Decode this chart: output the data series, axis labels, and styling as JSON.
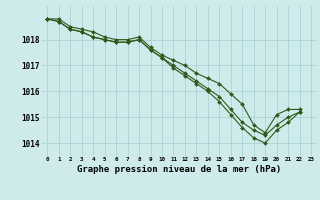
{
  "title": "Graphe pression niveau de la mer (hPa)",
  "background_color": "#ceeaea",
  "grid_color": "#aad4d4",
  "line_color": "#2d5a1b",
  "x_labels": [
    "0",
    "1",
    "2",
    "3",
    "4",
    "5",
    "6",
    "7",
    "8",
    "9",
    "10",
    "11",
    "12",
    "13",
    "14",
    "15",
    "16",
    "17",
    "18",
    "19",
    "20",
    "21",
    "22",
    "23"
  ],
  "ylim": [
    1013.5,
    1019.3
  ],
  "yticks": [
    1014,
    1015,
    1016,
    1017,
    1018
  ],
  "series": {
    "line1": [
      1018.8,
      1018.8,
      1018.5,
      1018.4,
      1018.3,
      1018.1,
      1018.0,
      1018.0,
      1018.1,
      1017.7,
      1017.4,
      1017.2,
      1017.0,
      1016.7,
      1016.5,
      1016.3,
      1015.9,
      1015.5,
      1014.7,
      1014.4,
      1015.1,
      1015.3,
      1015.3,
      null
    ],
    "line2": [
      1018.8,
      1018.7,
      1018.4,
      1018.3,
      1018.1,
      1018.0,
      1017.9,
      1017.9,
      1018.0,
      1017.6,
      1017.3,
      1017.0,
      1016.7,
      1016.4,
      1016.1,
      1015.8,
      1015.3,
      1014.8,
      1014.5,
      1014.3,
      1014.7,
      1015.0,
      1015.2,
      null
    ],
    "line3": [
      1018.8,
      1018.7,
      1018.4,
      1018.3,
      1018.1,
      1018.0,
      1017.9,
      1017.9,
      1018.0,
      1017.6,
      1017.3,
      1016.9,
      1016.6,
      1016.3,
      1016.0,
      1015.6,
      1015.1,
      1014.6,
      1014.2,
      1014.0,
      1014.5,
      1014.8,
      1015.2,
      null
    ]
  }
}
